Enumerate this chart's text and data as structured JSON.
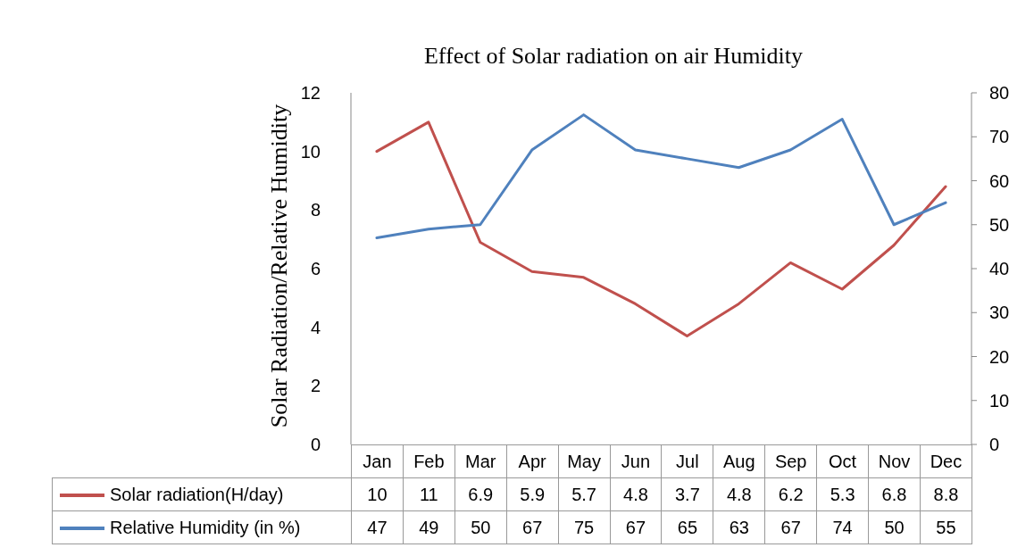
{
  "chart_data": {
    "type": "line",
    "title": "Effect of Solar radiation on air Humidity",
    "ylabel": "Solar Radiation/Relative Humidity",
    "categories": [
      "Jan",
      "Feb",
      "Mar",
      "Apr",
      "May",
      "Jun",
      "Jul",
      "Aug",
      "Sep",
      "Oct",
      "Nov",
      "Dec"
    ],
    "series": [
      {
        "name": "Solar radiation(H/day)",
        "color": "#c0504d",
        "values": [
          10,
          11,
          6.9,
          5.9,
          5.7,
          4.8,
          3.7,
          4.8,
          6.2,
          5.3,
          6.8,
          8.8
        ]
      },
      {
        "name": "Relative Humidity (in %)",
        "color": "#4f81bd",
        "axis": "y2",
        "values": [
          47,
          49,
          50,
          67,
          75,
          67,
          65,
          63,
          67,
          74,
          50,
          55
        ]
      }
    ],
    "ylim": [
      0,
      12
    ],
    "yticks": [
      0,
      2,
      4,
      6,
      8,
      10,
      12
    ],
    "y2lim": [
      0,
      80
    ],
    "y2ticks": [
      0,
      10,
      20,
      30,
      40,
      50,
      60,
      70,
      80
    ],
    "data_labels": true,
    "legend": "bottom",
    "grid": false,
    "marker": "none",
    "line_style": "solid"
  }
}
